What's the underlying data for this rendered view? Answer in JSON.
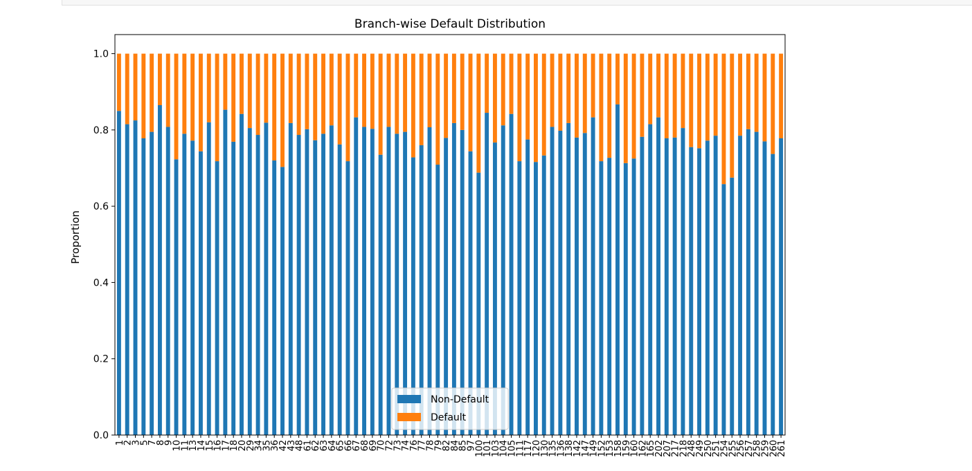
{
  "chart_data": {
    "type": "bar",
    "stacked": true,
    "title": "Branch-wise Default Distribution",
    "xlabel": "",
    "ylabel": "Proportion",
    "ylim": [
      0,
      1.05
    ],
    "yticks": [
      "0.0",
      "0.2",
      "0.4",
      "0.6",
      "0.8",
      "1.0"
    ],
    "legend_position": "lower center",
    "categories": [
      "1",
      "2",
      "3",
      "5",
      "7",
      "8",
      "9",
      "10",
      "11",
      "13",
      "14",
      "15",
      "16",
      "17",
      "18",
      "20",
      "29",
      "34",
      "35",
      "36",
      "42",
      "43",
      "48",
      "61",
      "62",
      "63",
      "64",
      "65",
      "66",
      "67",
      "68",
      "69",
      "70",
      "72",
      "73",
      "74",
      "76",
      "77",
      "78",
      "79",
      "82",
      "84",
      "85",
      "97",
      "100",
      "101",
      "103",
      "104",
      "105",
      "111",
      "117",
      "120",
      "130",
      "135",
      "136",
      "138",
      "142",
      "147",
      "149",
      "152",
      "153",
      "158",
      "159",
      "160",
      "162",
      "165",
      "202",
      "207",
      "217",
      "218",
      "248",
      "249",
      "250",
      "251",
      "254",
      "255",
      "256",
      "257",
      "258",
      "259",
      "260",
      "261"
    ],
    "series": [
      {
        "name": "Non-Default",
        "color": "#1f77b4",
        "values": [
          0.85,
          0.815,
          0.825,
          0.778,
          0.795,
          0.865,
          0.808,
          0.723,
          0.79,
          0.772,
          0.744,
          0.82,
          0.718,
          0.853,
          0.769,
          0.842,
          0.805,
          0.787,
          0.819,
          0.72,
          0.703,
          0.818,
          0.787,
          0.802,
          0.773,
          0.79,
          0.812,
          0.762,
          0.718,
          0.833,
          0.808,
          0.803,
          0.735,
          0.808,
          0.79,
          0.795,
          0.728,
          0.76,
          0.807,
          0.709,
          0.779,
          0.818,
          0.8,
          0.744,
          0.688,
          0.845,
          0.767,
          0.812,
          0.842,
          0.718,
          0.775,
          0.716,
          0.733,
          0.808,
          0.798,
          0.818,
          0.78,
          0.792,
          0.833,
          0.718,
          0.727,
          0.867,
          0.713,
          0.725,
          0.782,
          0.815,
          0.833,
          0.778,
          0.78,
          0.805,
          0.755,
          0.752,
          0.772,
          0.785,
          0.658,
          0.675,
          0.785,
          0.802,
          0.795,
          0.77,
          0.737,
          0.778
        ]
      },
      {
        "name": "Default",
        "color": "#ff7f0e",
        "values": [
          0.15,
          0.185,
          0.175,
          0.222,
          0.205,
          0.135,
          0.192,
          0.277,
          0.21,
          0.228,
          0.256,
          0.18,
          0.282,
          0.147,
          0.231,
          0.158,
          0.195,
          0.213,
          0.181,
          0.28,
          0.297,
          0.182,
          0.213,
          0.198,
          0.227,
          0.21,
          0.188,
          0.238,
          0.282,
          0.167,
          0.192,
          0.197,
          0.265,
          0.192,
          0.21,
          0.205,
          0.272,
          0.24,
          0.193,
          0.291,
          0.221,
          0.182,
          0.2,
          0.256,
          0.312,
          0.155,
          0.233,
          0.188,
          0.158,
          0.282,
          0.225,
          0.284,
          0.267,
          0.192,
          0.202,
          0.182,
          0.22,
          0.208,
          0.167,
          0.282,
          0.273,
          0.133,
          0.287,
          0.275,
          0.218,
          0.185,
          0.167,
          0.222,
          0.22,
          0.195,
          0.245,
          0.248,
          0.228,
          0.215,
          0.342,
          0.325,
          0.215,
          0.198,
          0.205,
          0.23,
          0.263,
          0.222
        ]
      }
    ]
  }
}
